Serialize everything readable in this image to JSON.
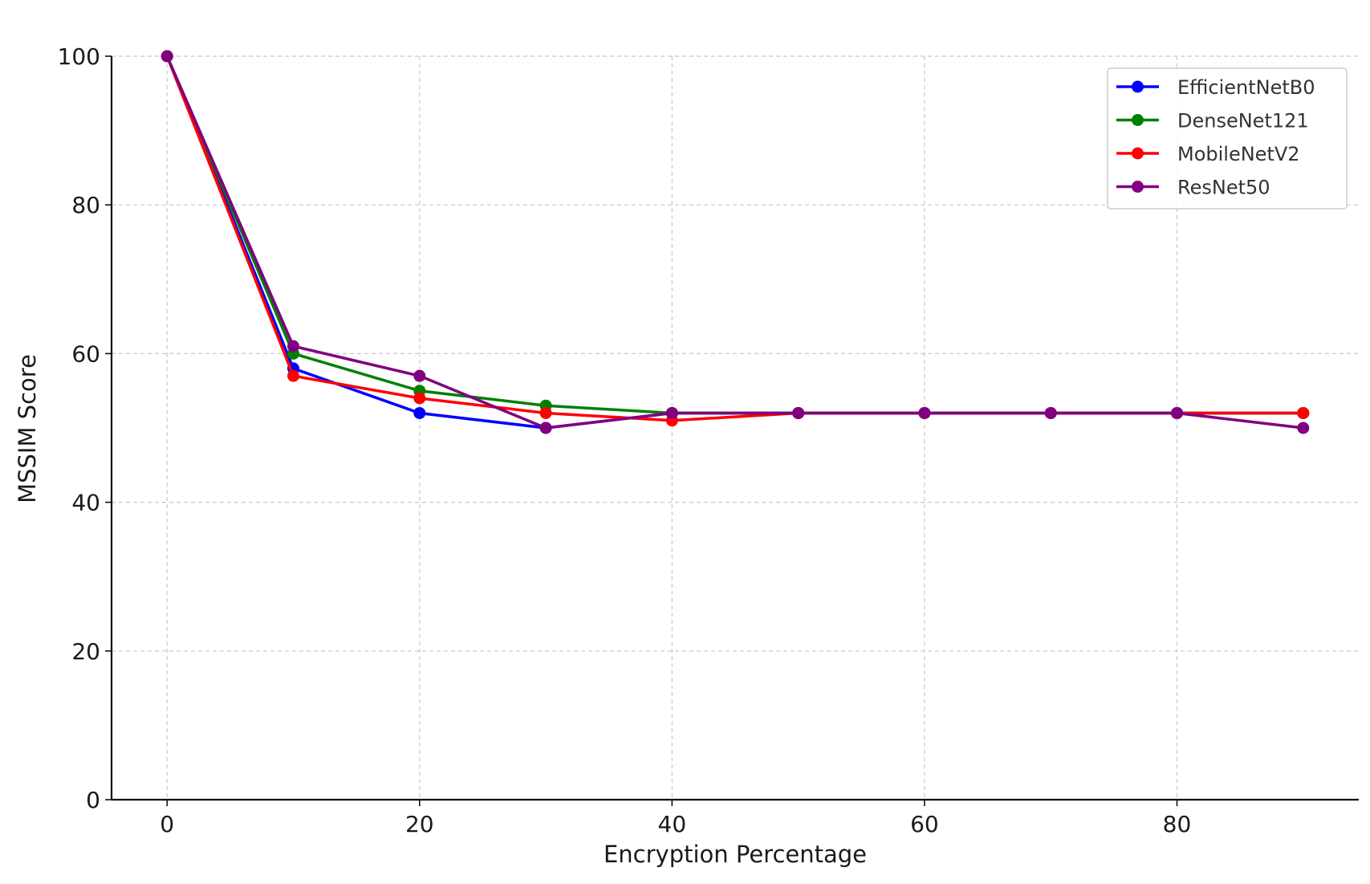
{
  "chart_data": {
    "type": "line",
    "title": "",
    "xlabel": "Encryption Percentage",
    "ylabel": "MSSIM Score",
    "x": [
      0,
      10,
      20,
      30,
      40,
      50,
      60,
      70,
      80,
      90
    ],
    "xlim": [
      -4.4,
      94.4
    ],
    "ylim": [
      0,
      100
    ],
    "xticks": [
      0,
      20,
      40,
      60,
      80
    ],
    "yticks": [
      0,
      20,
      40,
      60,
      80,
      100
    ],
    "grid": true,
    "legend_position": "top-right",
    "series": [
      {
        "name": "EfficientNetB0",
        "color": "#0000ff",
        "values": [
          100,
          58,
          52,
          50,
          52,
          52,
          52,
          52,
          52,
          52
        ]
      },
      {
        "name": "DenseNet121",
        "color": "#008000",
        "values": [
          100,
          60,
          55,
          53,
          52,
          52,
          52,
          52,
          52,
          52
        ]
      },
      {
        "name": "MobileNetV2",
        "color": "#ff0000",
        "values": [
          100,
          57,
          54,
          52,
          51,
          52,
          52,
          52,
          52,
          52
        ]
      },
      {
        "name": "ResNet50",
        "color": "#800080",
        "values": [
          100,
          61,
          57,
          50,
          52,
          52,
          52,
          52,
          52,
          50
        ]
      }
    ]
  }
}
